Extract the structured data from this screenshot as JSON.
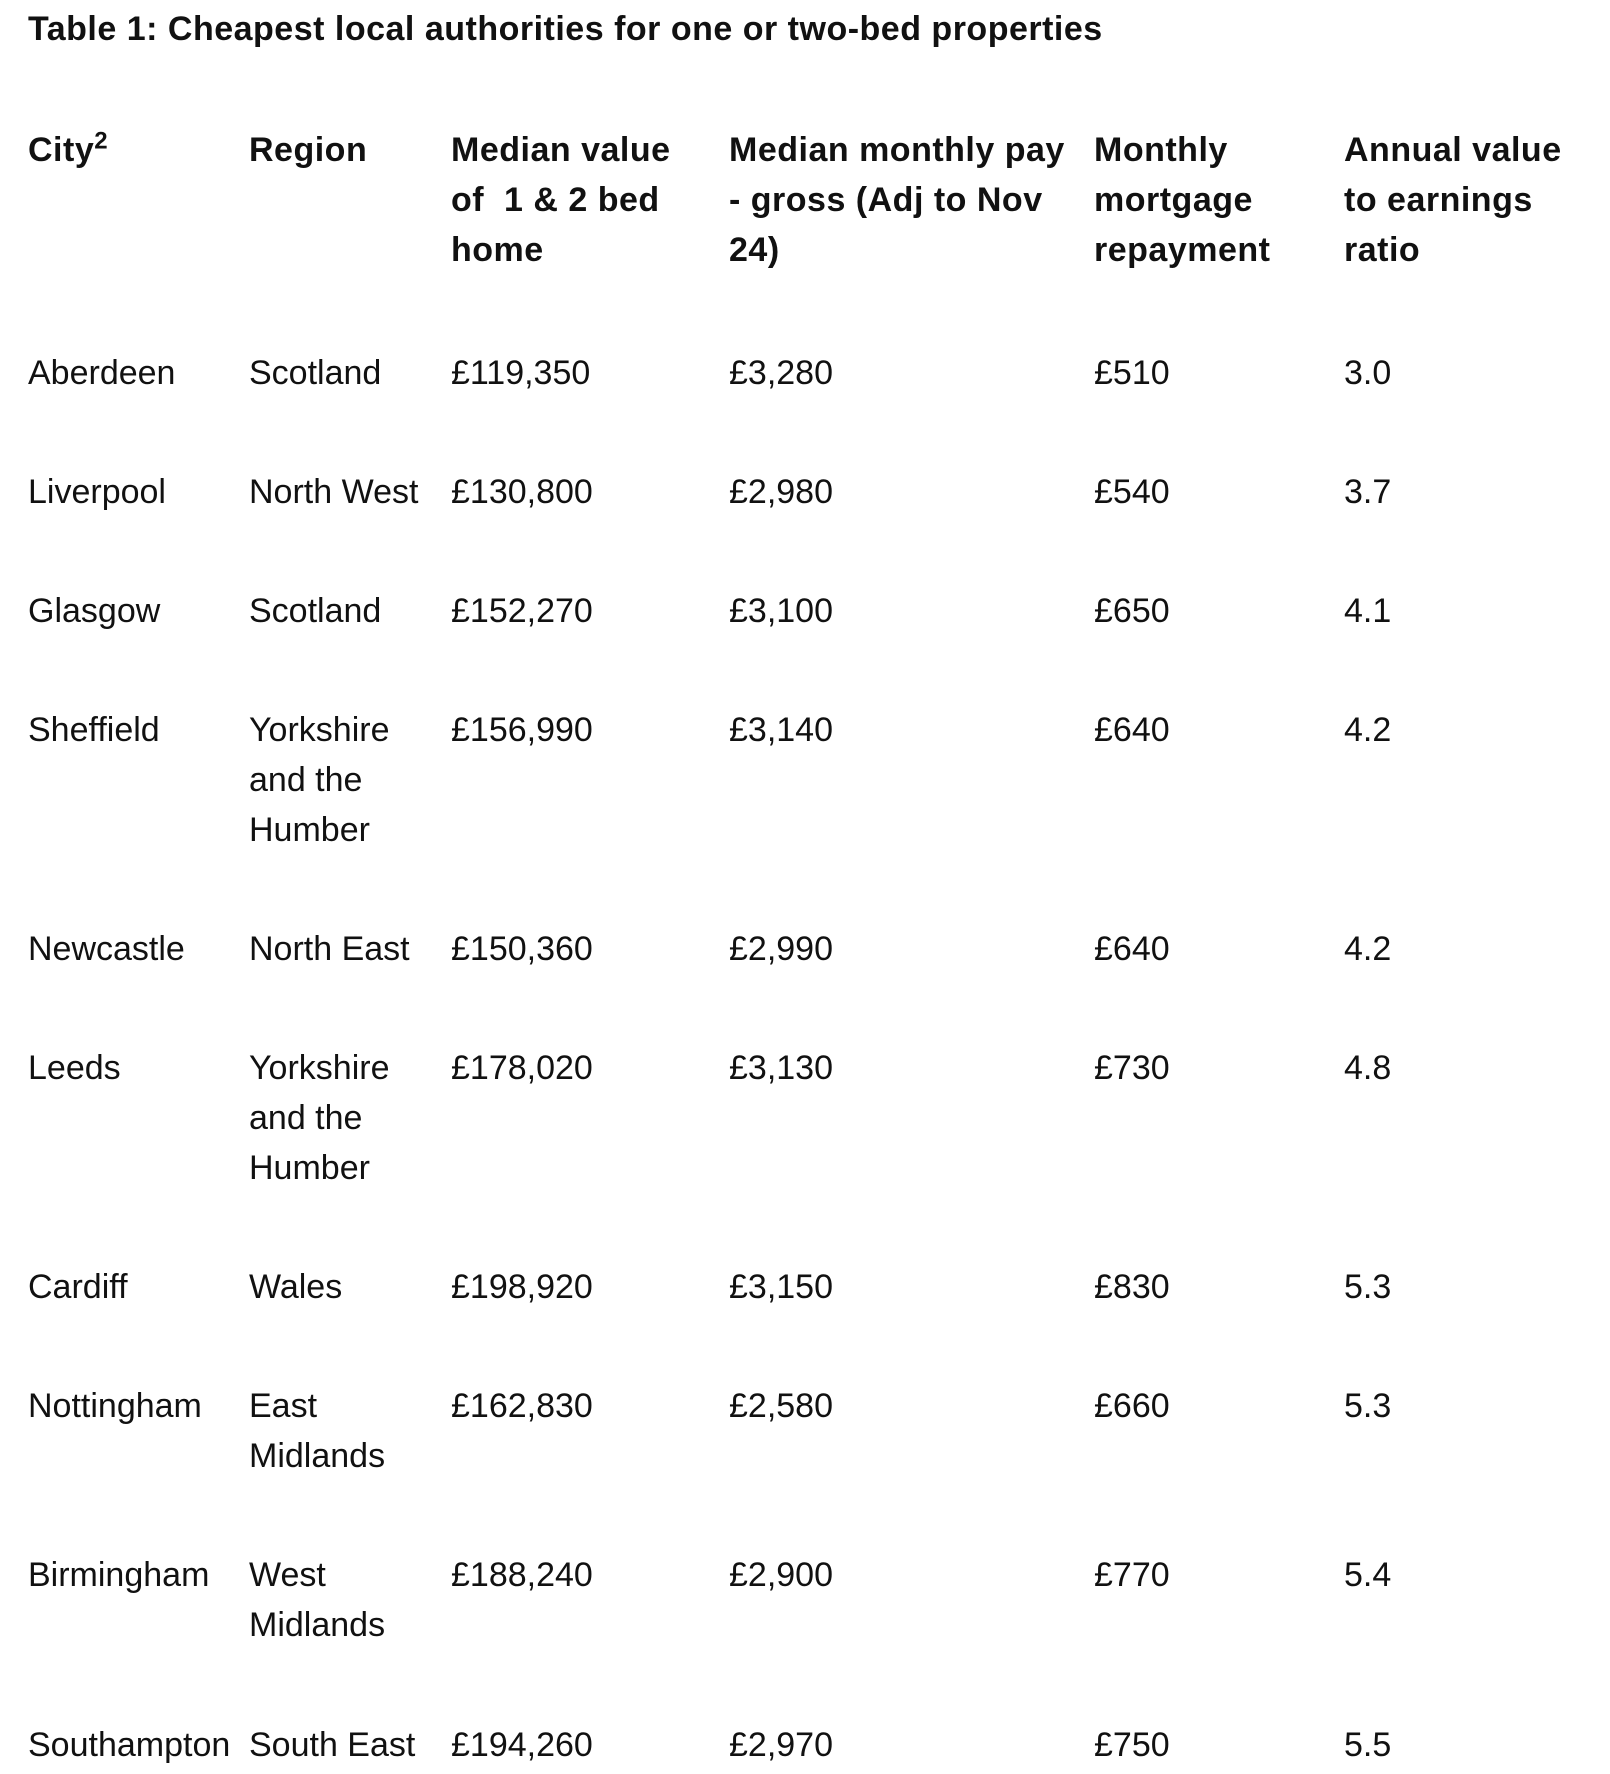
{
  "title": "Table 1: Cheapest local authorities for one or two-bed properties",
  "table": {
    "header": [
      {
        "lines": [
          "City"
        ],
        "superscript": "2"
      },
      {
        "lines": [
          "Region"
        ]
      },
      {
        "lines": [
          "Median value",
          "of  1 & 2 bed",
          "home"
        ]
      },
      {
        "lines": [
          "Median monthly pay",
          "- gross (Adj to Nov",
          "24)"
        ]
      },
      {
        "lines": [
          "Monthly",
          "mortgage",
          "repayment"
        ]
      },
      {
        "lines": [
          "Annual value",
          "to earnings",
          "ratio"
        ]
      }
    ],
    "rows": [
      [
        "Aberdeen",
        "Scotland",
        "£119,350",
        "£3,280",
        "£510",
        "3.0"
      ],
      [
        "Liverpool",
        "North West",
        "£130,800",
        "£2,980",
        "£540",
        "3.7"
      ],
      [
        "Glasgow",
        "Scotland",
        "£152,270",
        "£3,100",
        "£650",
        "4.1"
      ],
      [
        "Sheffield",
        "Yorkshire and the Humber",
        "£156,990",
        "£3,140",
        "£640",
        "4.2"
      ],
      [
        "Newcastle",
        "North East",
        "£150,360",
        "£2,990",
        "£640",
        "4.2"
      ],
      [
        "Leeds",
        "Yorkshire and the Humber",
        "£178,020",
        "£3,130",
        "£730",
        "4.8"
      ],
      [
        "Cardiff",
        "Wales",
        "£198,920",
        "£3,150",
        "£830",
        "5.3"
      ],
      [
        "Nottingham",
        "East Midlands",
        "£162,830",
        "£2,580",
        "£660",
        "5.3"
      ],
      [
        "Birmingham",
        "West Midlands",
        "£188,240",
        "£2,900",
        "£770",
        "5.4"
      ],
      [
        "Southampton",
        "South East",
        "£194,260",
        "£2,970",
        "£750",
        "5.5"
      ]
    ]
  }
}
